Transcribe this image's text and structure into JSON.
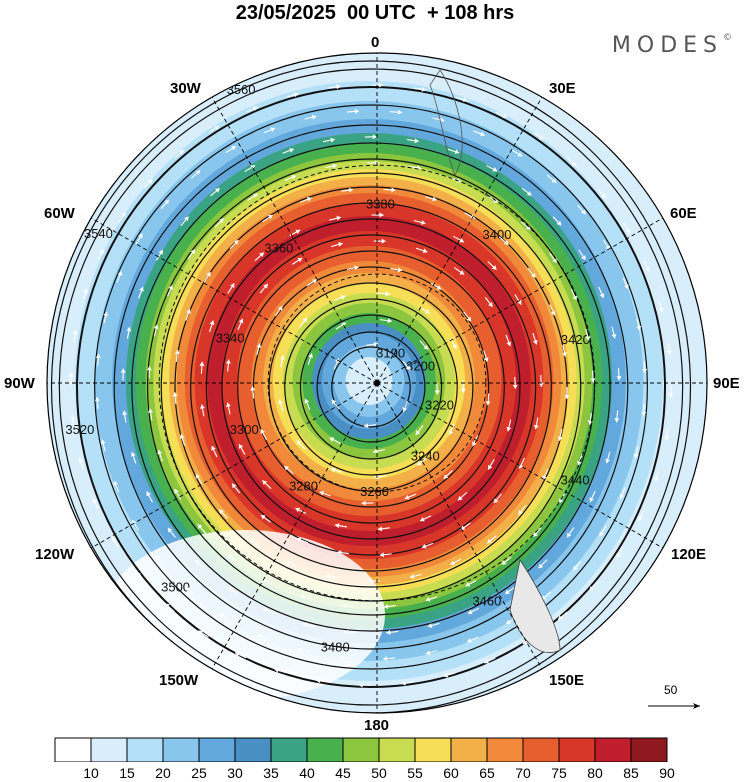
{
  "title": "23/05/2025  00 UTC  + 108 hrs",
  "brand": "MODES",
  "brand_mark": "©",
  "longitude_labels": {
    "lon_0": "0",
    "lon_30e": "30E",
    "lon_60e": "60E",
    "lon_90e": "90E",
    "lon_120e": "120E",
    "lon_150e": "150E",
    "lon_180": "180",
    "lon_150w": "150W",
    "lon_120w": "120W",
    "lon_90w": "90W",
    "lon_60w": "60W",
    "lon_30w": "30W"
  },
  "colorbar": {
    "labels": [
      "10",
      "15",
      "20",
      "25",
      "30",
      "35",
      "40",
      "45",
      "50",
      "55",
      "60",
      "65",
      "70",
      "75",
      "80",
      "85",
      "90"
    ],
    "colors": [
      "#ffffff",
      "#d8eefb",
      "#b4e0f8",
      "#88c6ee",
      "#62a8dc",
      "#4a8fc4",
      "#3aa383",
      "#48b04c",
      "#8cc63f",
      "#c8dc52",
      "#f7de57",
      "#f3b048",
      "#f08a3a",
      "#e85f2f",
      "#d9362a",
      "#bf1e2d",
      "#8e1a1f"
    ]
  },
  "contour_labels": [
    "3190",
    "3200",
    "3220",
    "3240",
    "3260",
    "3280",
    "3300",
    "3340",
    "3360",
    "3380",
    "3400",
    "3420",
    "3440",
    "3460",
    "3480",
    "3500",
    "3520",
    "3540",
    "3560"
  ],
  "reference_vector": {
    "label": "50"
  },
  "colors": {
    "contour": "#111111",
    "wind_vectors": "#ffffff",
    "graticule": "#000000"
  }
}
